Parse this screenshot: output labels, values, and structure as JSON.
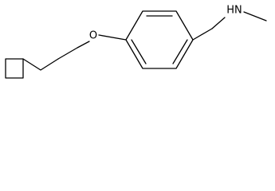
{
  "atoms": {
    "oxygen": "O",
    "amine": "HN"
  }
}
